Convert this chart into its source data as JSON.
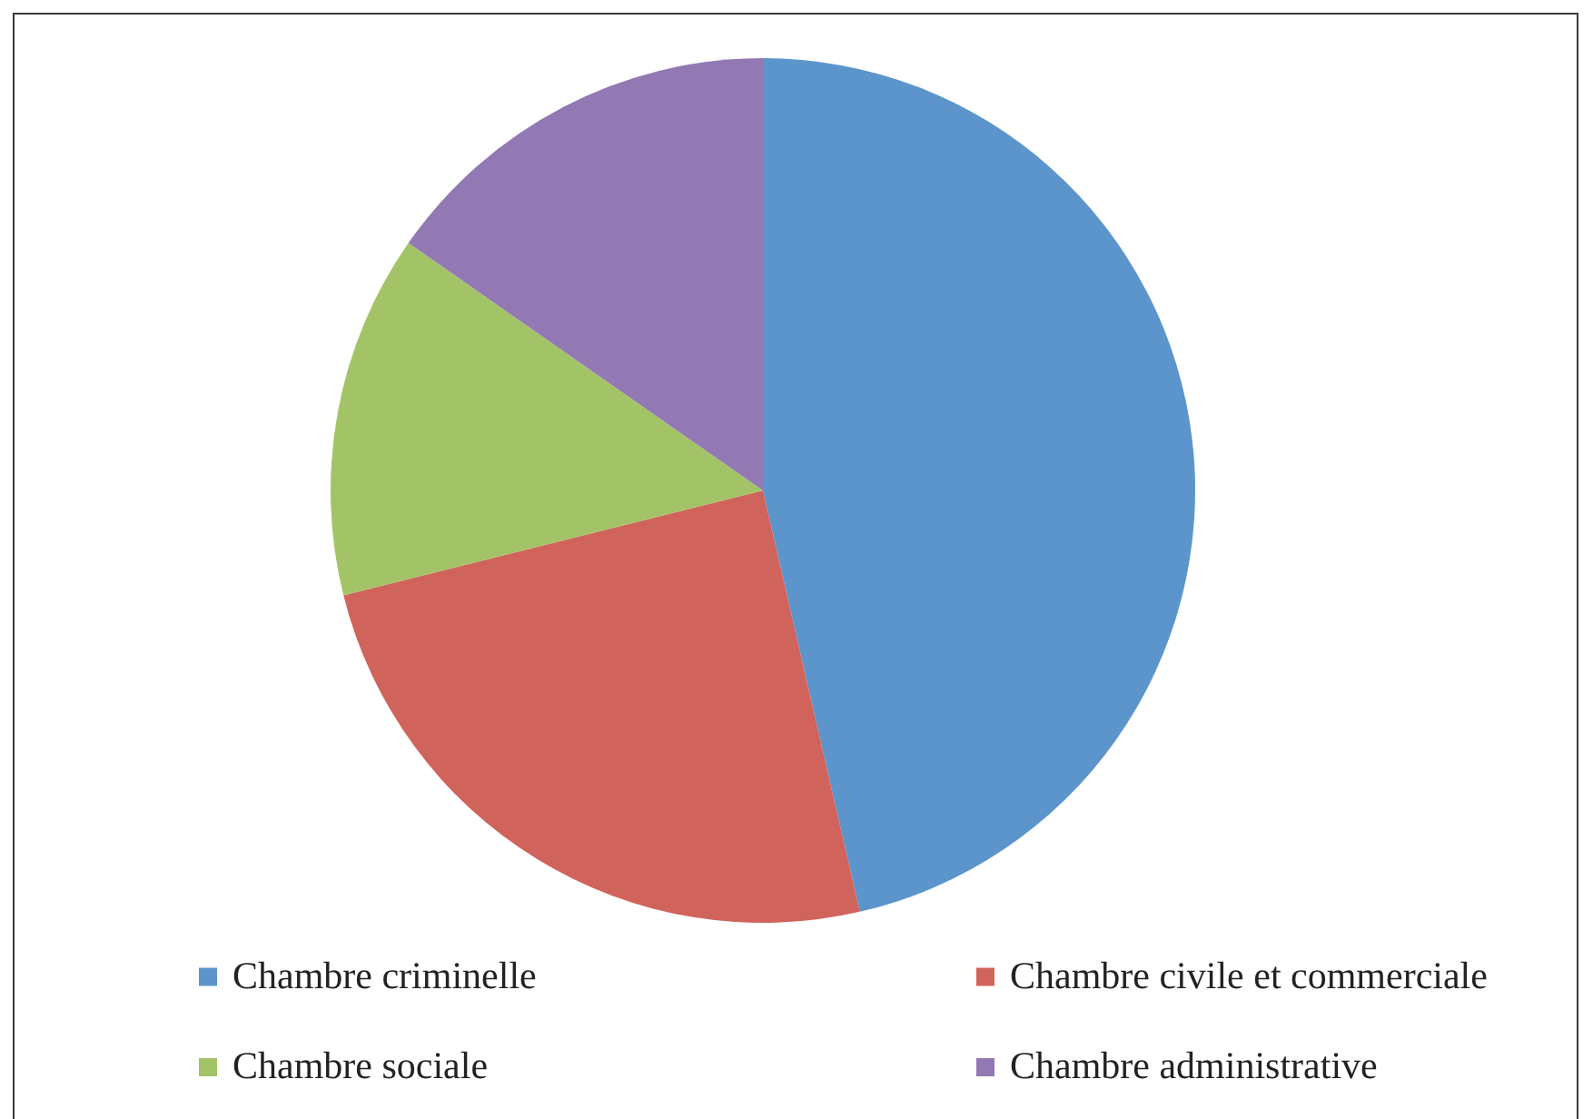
{
  "chart_data": {
    "type": "pie",
    "categories": [
      "Chambre criminelle",
      "Chambre civile et commerciale",
      "Chambre sociale",
      "Chambre administrative"
    ],
    "values": [
      46.4,
      24.7,
      13.6,
      15.3
    ],
    "colors": [
      "#5b95cb",
      "#d0635b",
      "#a3c466",
      "#9279b3"
    ],
    "legend": "bottom"
  }
}
